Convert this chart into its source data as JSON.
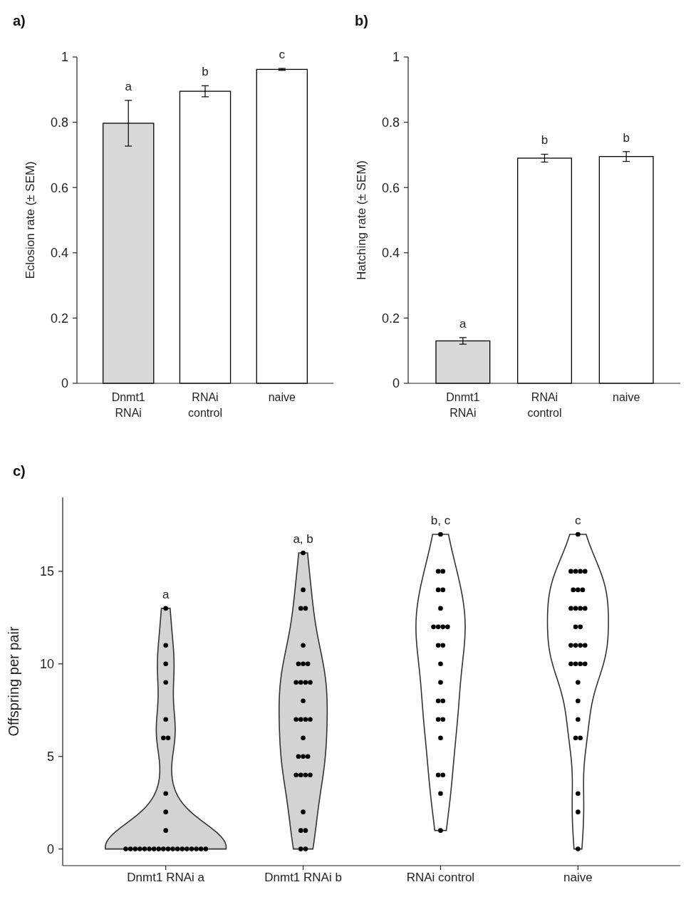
{
  "chart_data": [
    {
      "type": "bar",
      "title": "a)",
      "ylabel": "Eclosion rate (± SEM)",
      "categories": [
        "Dnmt1 RNAi",
        "RNAi control",
        "naive"
      ],
      "values": [
        0.797,
        0.895,
        0.962
      ],
      "errors": [
        0.07,
        0.017,
        0.003
      ],
      "colors": [
        "#d9d9d9",
        "#ffffff",
        "#ffffff"
      ],
      "ylim": [
        0,
        1
      ],
      "yticks": [
        0,
        0.2,
        0.4,
        0.6,
        0.8,
        1
      ],
      "grid": false,
      "annotations": [
        {
          "text": "a",
          "x": "Dnmt1 RNAi",
          "y": 0.867
        },
        {
          "text": "b",
          "x": "RNAi control",
          "y": 0.912
        },
        {
          "text": "c",
          "x": "naive",
          "y": 0.965
        }
      ]
    },
    {
      "type": "bar",
      "title": "b)",
      "ylabel": "Hatching rate (± SEM)",
      "categories": [
        "Dnmt1 RNAi",
        "RNAi control",
        "naive"
      ],
      "values": [
        0.13,
        0.69,
        0.695
      ],
      "errors": [
        0.01,
        0.012,
        0.015
      ],
      "colors": [
        "#d9d9d9",
        "#ffffff",
        "#ffffff"
      ],
      "ylim": [
        0,
        1
      ],
      "yticks": [
        0,
        0.2,
        0.4,
        0.6,
        0.8,
        1
      ],
      "grid": false,
      "annotations": [
        {
          "text": "a",
          "x": "Dnmt1 RNAi",
          "y": 0.14
        },
        {
          "text": "b",
          "x": "RNAi control",
          "y": 0.702
        },
        {
          "text": "b",
          "x": "naive",
          "y": 0.71
        }
      ]
    },
    {
      "type": "scatter",
      "title": "c)",
      "ylabel": "Offspring per pair",
      "categories": [
        "Dnmt1 RNAi a",
        "Dnmt1 RNAi b",
        "RNAi control",
        "naive"
      ],
      "colors": [
        "#d3d3d3",
        "#d3d3d3",
        "#ffffff",
        "#ffffff"
      ],
      "ylim": [
        -0.9,
        19
      ],
      "yticks": [
        0,
        5,
        10,
        15
      ],
      "grid": false,
      "marker": "circle",
      "series": [
        {
          "type": "scatter",
          "color": "#000000",
          "x": [
            "Dnmt1 RNAi a",
            "Dnmt1 RNAi a",
            "Dnmt1 RNAi a",
            "Dnmt1 RNAi a",
            "Dnmt1 RNAi a",
            "Dnmt1 RNAi a",
            "Dnmt1 RNAi a",
            "Dnmt1 RNAi a",
            "Dnmt1 RNAi a",
            "Dnmt1 RNAi a",
            "Dnmt1 RNAi a",
            "Dnmt1 RNAi a",
            "Dnmt1 RNAi a",
            "Dnmt1 RNAi a",
            "Dnmt1 RNAi a",
            "Dnmt1 RNAi a",
            "Dnmt1 RNAi a",
            "Dnmt1 RNAi a",
            "Dnmt1 RNAi a",
            "Dnmt1 RNAi a",
            "Dnmt1 RNAi a",
            "Dnmt1 RNAi a",
            "Dnmt1 RNAi a",
            "Dnmt1 RNAi a",
            "Dnmt1 RNAi a",
            "Dnmt1 RNAi a",
            "Dnmt1 RNAi a",
            "Dnmt1 RNAi a",
            "Dnmt1 RNAi b",
            "Dnmt1 RNAi b",
            "Dnmt1 RNAi b",
            "Dnmt1 RNAi b",
            "Dnmt1 RNAi b",
            "Dnmt1 RNAi b",
            "Dnmt1 RNAi b",
            "Dnmt1 RNAi b",
            "Dnmt1 RNAi b",
            "Dnmt1 RNAi b",
            "Dnmt1 RNAi b",
            "Dnmt1 RNAi b",
            "Dnmt1 RNAi b",
            "Dnmt1 RNAi b",
            "Dnmt1 RNAi b",
            "Dnmt1 RNAi b",
            "Dnmt1 RNAi b",
            "Dnmt1 RNAi b",
            "Dnmt1 RNAi b",
            "Dnmt1 RNAi b",
            "Dnmt1 RNAi b",
            "Dnmt1 RNAi b",
            "Dnmt1 RNAi b",
            "Dnmt1 RNAi b",
            "Dnmt1 RNAi b",
            "Dnmt1 RNAi b",
            "Dnmt1 RNAi b",
            "Dnmt1 RNAi b",
            "Dnmt1 RNAi b",
            "Dnmt1 RNAi b",
            "RNAi control",
            "RNAi control",
            "RNAi control",
            "RNAi control",
            "RNAi control",
            "RNAi control",
            "RNAi control",
            "RNAi control",
            "RNAi control",
            "RNAi control",
            "RNAi control",
            "RNAi control",
            "RNAi control",
            "RNAi control",
            "RNAi control",
            "RNAi control",
            "RNAi control",
            "RNAi control",
            "RNAi control",
            "RNAi control",
            "RNAi control",
            "RNAi control",
            "RNAi control",
            "naive",
            "naive",
            "naive",
            "naive",
            "naive",
            "naive",
            "naive",
            "naive",
            "naive",
            "naive",
            "naive",
            "naive",
            "naive",
            "naive",
            "naive",
            "naive",
            "naive",
            "naive",
            "naive",
            "naive",
            "naive",
            "naive",
            "naive",
            "naive",
            "naive",
            "naive",
            "naive",
            "naive",
            "naive",
            "naive"
          ],
          "values": [
            13,
            11,
            10,
            9,
            7,
            6,
            6,
            3,
            2,
            1,
            0,
            0,
            0,
            0,
            0,
            0,
            0,
            0,
            0,
            0,
            0,
            0,
            0,
            0,
            0,
            0,
            0,
            0,
            16,
            14,
            13,
            13,
            11,
            10,
            10,
            10,
            9,
            9,
            9,
            9,
            8,
            7,
            7,
            7,
            7,
            6,
            5,
            5,
            5,
            4,
            4,
            4,
            4,
            2,
            1,
            1,
            0,
            0,
            17,
            15,
            15,
            14,
            14,
            13,
            12,
            12,
            12,
            12,
            11,
            11,
            10,
            9,
            8,
            8,
            7,
            7,
            6,
            4,
            4,
            3,
            1,
            17,
            15,
            15,
            15,
            15,
            14,
            14,
            14,
            13,
            13,
            13,
            13,
            12,
            12,
            11,
            11,
            11,
            11,
            10,
            10,
            10,
            10,
            9,
            8,
            7,
            6,
            6,
            3,
            2,
            0
          ]
        }
      ],
      "annotations": [
        {
          "text": "a",
          "x": "Dnmt1 RNAi a",
          "y": 13
        },
        {
          "text": "a, b",
          "x": "Dnmt1 RNAi b",
          "y": 16
        },
        {
          "text": "b, c",
          "x": "RNAi control",
          "y": 17
        },
        {
          "text": "c",
          "x": "naive",
          "y": 17
        }
      ]
    }
  ]
}
